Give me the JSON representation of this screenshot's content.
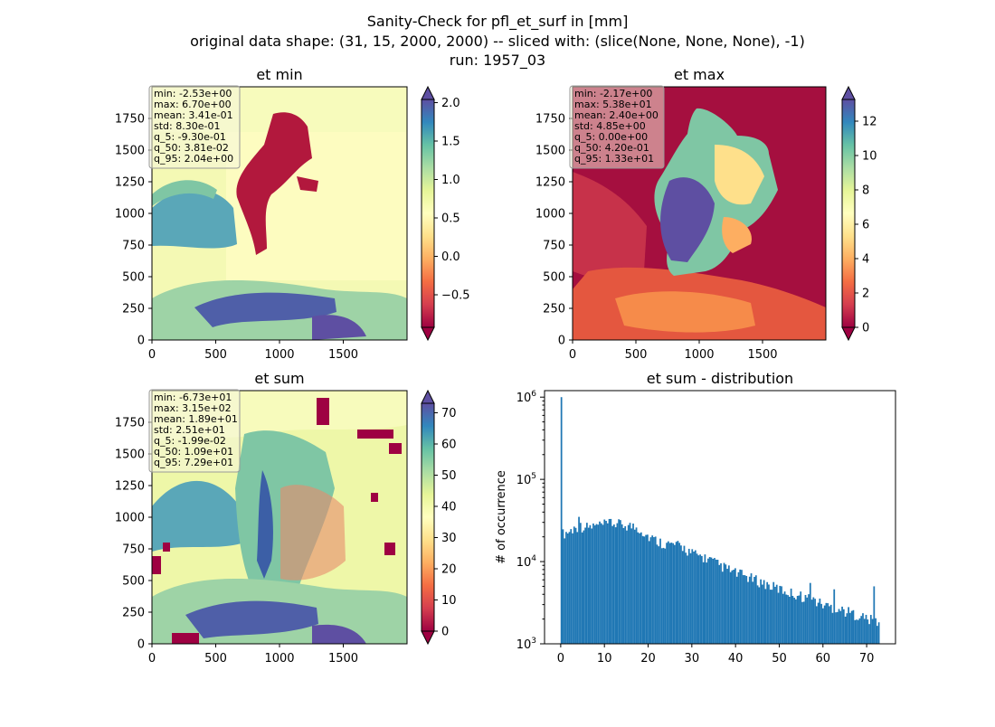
{
  "figure": {
    "title_lines": [
      "Sanity-Check for pfl_et_surf in [mm]",
      "original data shape: (31, 15, 2000, 2000) -- sliced with: (slice(None, None, None), -1)",
      "run: 1957_03"
    ]
  },
  "chart_data": [
    {
      "type": "heatmap",
      "title": "et min",
      "colormap": "Spectral",
      "x_ticks": [
        "0",
        "500",
        "1000",
        "1500"
      ],
      "y_ticks": [
        "0",
        "250",
        "500",
        "750",
        "1000",
        "1250",
        "1500",
        "1750"
      ],
      "xlim": [
        0,
        2000
      ],
      "ylim": [
        0,
        2000
      ],
      "colorbar": {
        "min": -0.93,
        "max": 2.04,
        "ticks": [
          "−0.5",
          "0.0",
          "0.5",
          "1.0",
          "1.5",
          "2.0"
        ],
        "tick_values": [
          -0.5,
          0.0,
          0.5,
          1.0,
          1.5,
          2.0
        ],
        "extend": "both"
      },
      "stats": [
        "min: -2.53e+00",
        "max: 6.70e+00",
        "mean: 3.41e-01",
        "std: 8.30e-01",
        "q_5: -9.30e-01",
        "q_50: 3.81e-02",
        "q_95: 2.04e+00"
      ],
      "stats_box_color": "#f5f5dc"
    },
    {
      "type": "heatmap",
      "title": "et max",
      "colormap": "Spectral",
      "x_ticks": [
        "0",
        "500",
        "1000",
        "1500"
      ],
      "y_ticks": [
        "0",
        "250",
        "500",
        "750",
        "1000",
        "1250",
        "1500",
        "1750"
      ],
      "xlim": [
        0,
        2000
      ],
      "ylim": [
        0,
        2000
      ],
      "colorbar": {
        "min": 0.0,
        "max": 13.3,
        "ticks": [
          "0",
          "2",
          "4",
          "6",
          "8",
          "10",
          "12"
        ],
        "tick_values": [
          0,
          2,
          4,
          6,
          8,
          10,
          12
        ],
        "extend": "both"
      },
      "stats": [
        "min: -2.17e+00",
        "max: 5.38e+01",
        "mean: 2.40e+00",
        "std: 4.85e+00",
        "q_5: 0.00e+00",
        "q_50: 4.20e-01",
        "q_95: 1.33e+01"
      ],
      "stats_box_color": "#f5f5dc"
    },
    {
      "type": "heatmap",
      "title": "et sum",
      "colormap": "Spectral",
      "x_ticks": [
        "0",
        "500",
        "1000",
        "1500"
      ],
      "y_ticks": [
        "0",
        "250",
        "500",
        "750",
        "1000",
        "1250",
        "1500",
        "1750"
      ],
      "xlim": [
        0,
        2000
      ],
      "ylim": [
        0,
        2000
      ],
      "colorbar": {
        "min": -0.0199,
        "max": 72.9,
        "ticks": [
          "0",
          "10",
          "20",
          "30",
          "40",
          "50",
          "60",
          "70"
        ],
        "tick_values": [
          0,
          10,
          20,
          30,
          40,
          50,
          60,
          70
        ],
        "extend": "both"
      },
      "stats": [
        "min: -6.73e+01",
        "max: 3.15e+02",
        "mean: 1.89e+01",
        "std: 2.51e+01",
        "q_5: -1.99e-02",
        "q_50: 1.09e+01",
        "q_95: 7.29e+01"
      ],
      "stats_box_color": "#f5f5dc"
    },
    {
      "type": "bar",
      "title": "et sum - distribution",
      "ylabel": "# of occurrence",
      "xlabel": "",
      "x_ticks": [
        "0",
        "10",
        "20",
        "30",
        "40",
        "50",
        "60",
        "70"
      ],
      "x_tick_values": [
        0,
        10,
        20,
        30,
        40,
        50,
        60,
        70
      ],
      "xlim": [
        -3.7,
        76.6
      ],
      "ylog": true,
      "ylim": [
        1000,
        1200000
      ],
      "y_ticks": [
        {
          "base": "10",
          "exp": "3",
          "value": 1000
        },
        {
          "base": "10",
          "exp": "4",
          "value": 10000
        },
        {
          "base": "10",
          "exp": "5",
          "value": 100000
        },
        {
          "base": "10",
          "exp": "6",
          "value": 1000000
        }
      ],
      "bin_start": -0.02,
      "bin_width": 0.365,
      "color": "#1f77b4",
      "trend": [
        [
          0,
          22000
        ],
        [
          2,
          24000
        ],
        [
          4,
          28000
        ],
        [
          6,
          27000
        ],
        [
          8,
          28000
        ],
        [
          10,
          29000
        ],
        [
          12,
          30000
        ],
        [
          14,
          29000
        ],
        [
          16,
          28000
        ],
        [
          18,
          26000
        ],
        [
          20,
          21000
        ],
        [
          22,
          18500
        ],
        [
          24,
          17000
        ],
        [
          26,
          16500
        ],
        [
          28,
          15500
        ],
        [
          30,
          13000
        ],
        [
          32,
          12000
        ],
        [
          34,
          11000
        ],
        [
          36,
          9500
        ],
        [
          38,
          8500
        ],
        [
          40,
          7500
        ],
        [
          42,
          7000
        ],
        [
          44,
          6300
        ],
        [
          46,
          5800
        ],
        [
          48,
          5200
        ],
        [
          50,
          4800
        ],
        [
          52,
          4400
        ],
        [
          54,
          4100
        ],
        [
          56,
          3800
        ],
        [
          58,
          3500
        ],
        [
          60,
          3100
        ],
        [
          62,
          2900
        ],
        [
          64,
          2700
        ],
        [
          66,
          2500
        ],
        [
          68,
          2300
        ],
        [
          70,
          2100
        ],
        [
          72.5,
          1900
        ]
      ],
      "spikes": [
        {
          "x": 0.0,
          "value": 1000000
        },
        {
          "x": 4.2,
          "value": 35000
        },
        {
          "x": 11.6,
          "value": 33000
        },
        {
          "x": 57.0,
          "value": 5500
        },
        {
          "x": 62.5,
          "value": 4600
        },
        {
          "x": 71.8,
          "value": 5000
        }
      ]
    }
  ]
}
